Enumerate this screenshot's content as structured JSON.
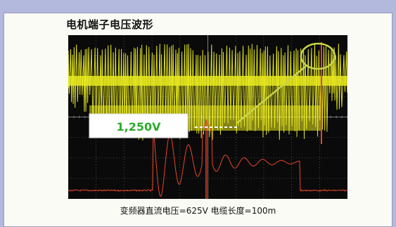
{
  "title": "电机端子电压波形",
  "caption": "变频器直流电压=625V 电缆长度=100m",
  "callout": "1,250V",
  "colors": {
    "background": "#b3b8dd",
    "panel": "#fbfbf6",
    "scope_bg": "#0a0a0a",
    "grid": "#7a7a7a",
    "yellow_trace": "#e9ea20",
    "red_trace": "#e8452a",
    "callout_text": "#2eaa2e",
    "highlight_circle": "#c9d64a"
  },
  "chart_data": {
    "type": "line",
    "title": "电机端子电压波形",
    "annotations": [
      "1,250V",
      "变频器直流电压=625V 电缆长度=100m"
    ],
    "grid": true,
    "series": [
      {
        "color": "#e9ea20"
      },
      {
        "color": "#e8452a"
      }
    ]
  }
}
